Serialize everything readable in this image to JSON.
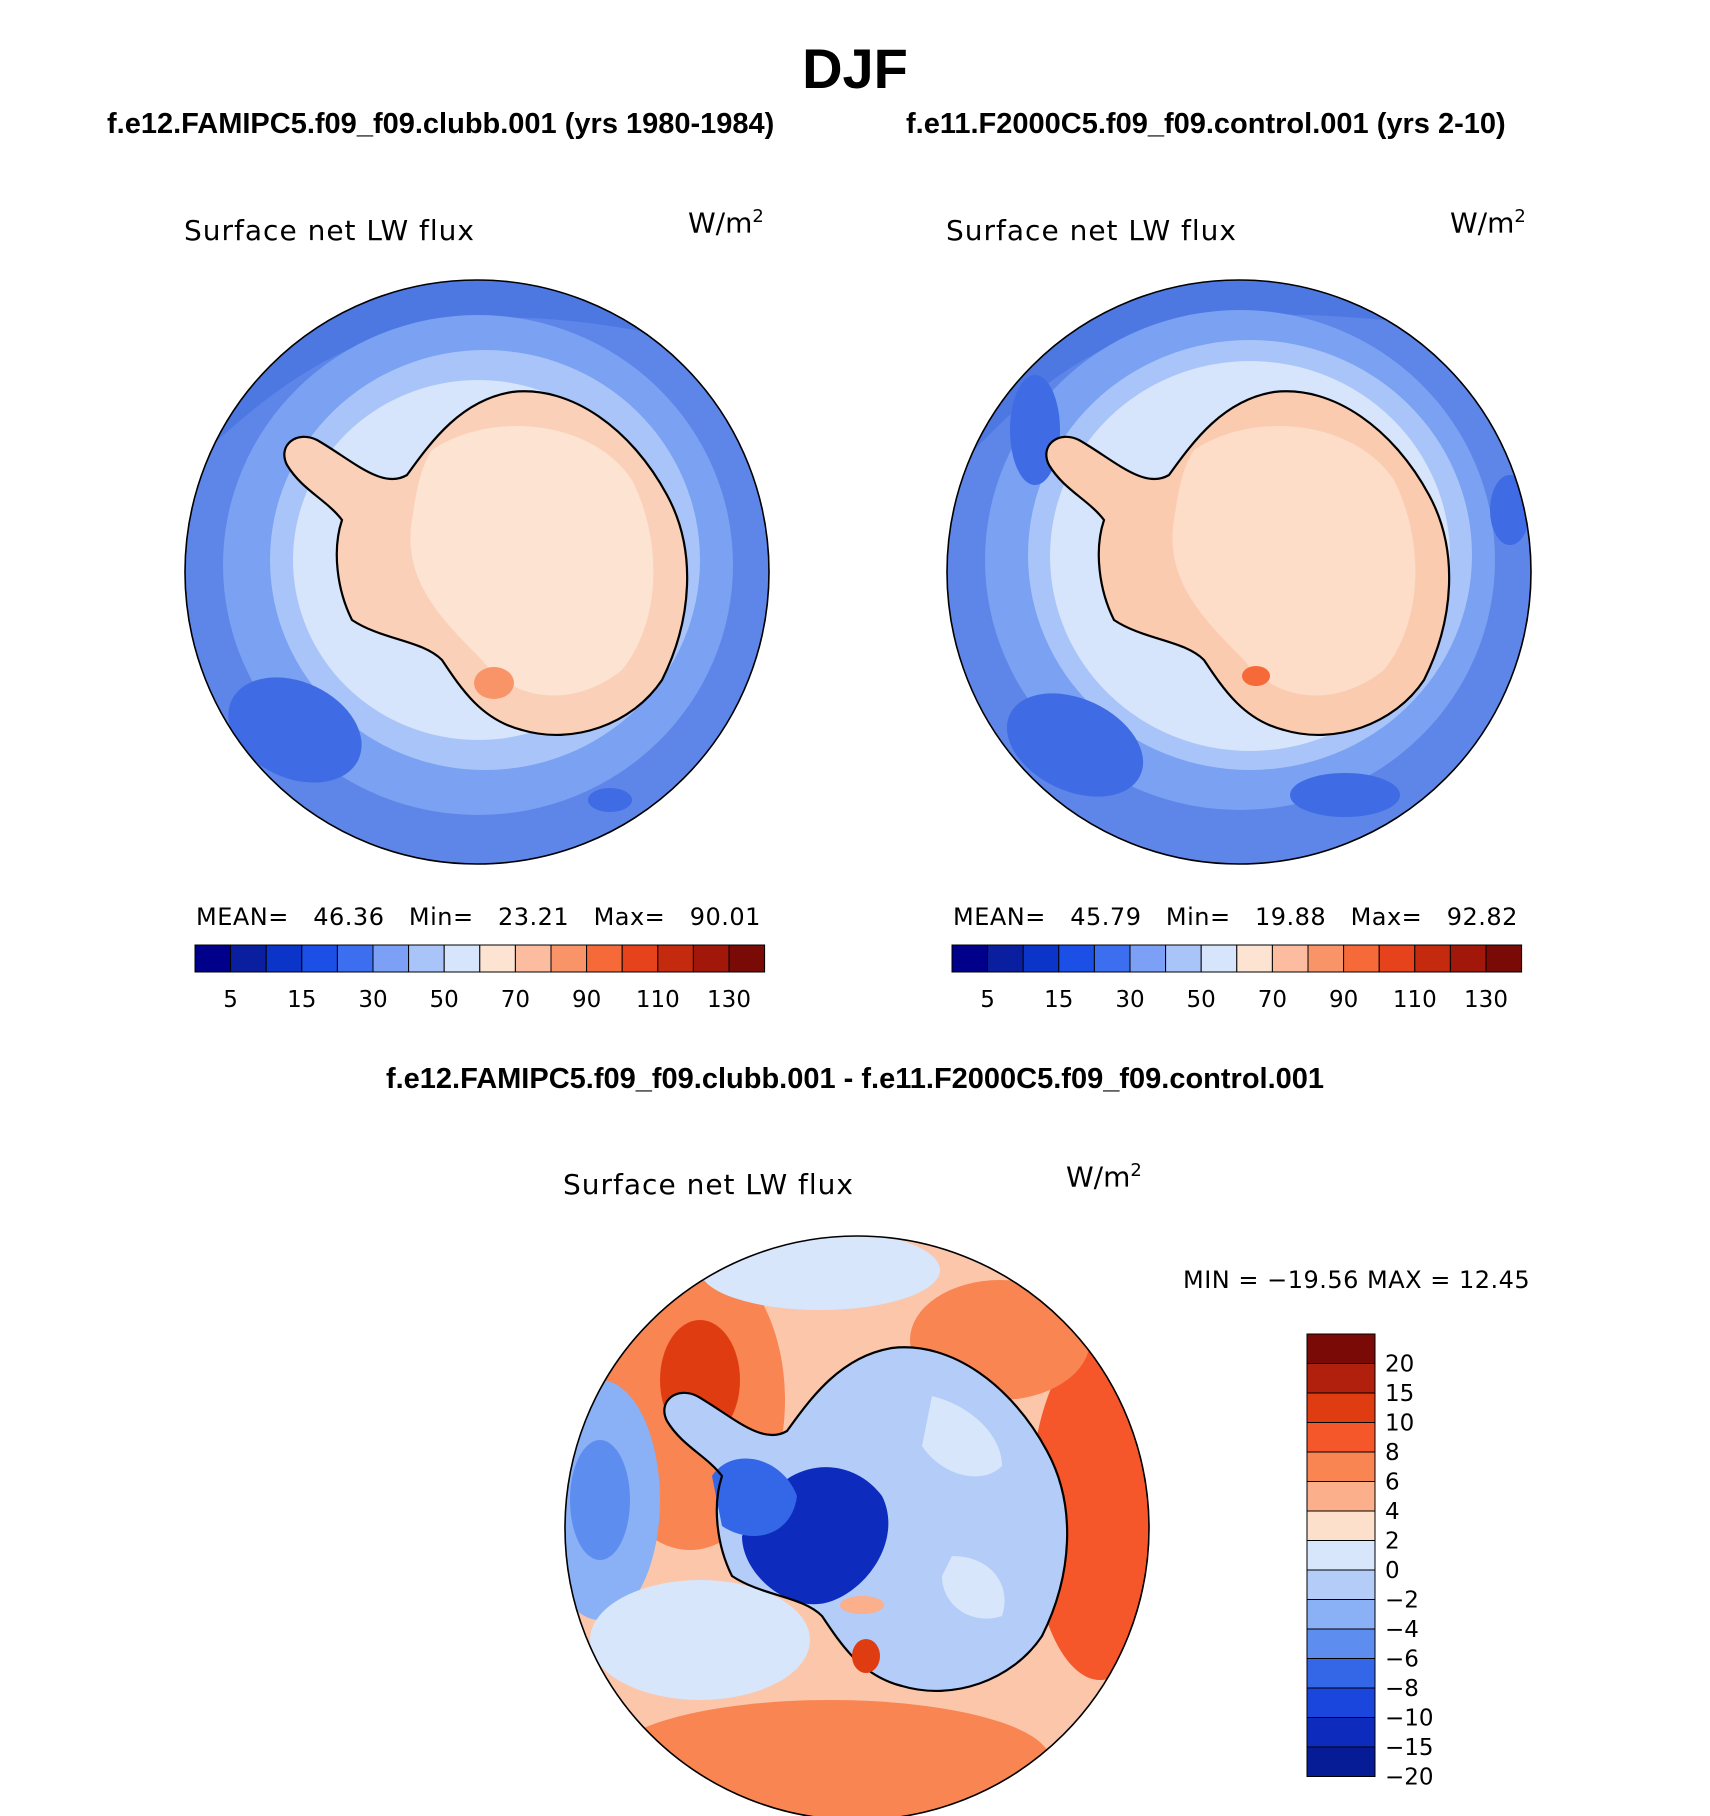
{
  "title": "DJF",
  "panels": [
    {
      "case_title": "f.e12.FAMIPC5.f09_f09.clubb.001 (yrs 1980-1984)",
      "variable": "Surface net LW flux",
      "units_base": "W/m",
      "units_exp": "2",
      "stats": {
        "mean_label": "MEAN=",
        "mean": "46.36",
        "min_label": "Min=",
        "min": "23.21",
        "max_label": "Max=",
        "max": "90.01"
      }
    },
    {
      "case_title": "f.e11.F2000C5.f09_f09.control.001 (yrs 2-10)",
      "variable": "Surface net LW flux",
      "units_base": "W/m",
      "units_exp": "2",
      "stats": {
        "mean_label": "MEAN=",
        "mean": "45.79",
        "min_label": "Min=",
        "min": "19.88",
        "max_label": "Max=",
        "max": "92.82"
      }
    }
  ],
  "colorbar": {
    "colors": [
      "#00008b",
      "#0a1fa0",
      "#0a35c8",
      "#1c4fe6",
      "#3c6ef0",
      "#7ba0f5",
      "#a9c4f8",
      "#d6e5fb",
      "#fde3d2",
      "#fbbca0",
      "#f89468",
      "#f66a3a",
      "#e6421c",
      "#c42a0e",
      "#a1180a",
      "#7a0a06"
    ],
    "ticks": [
      "5",
      "15",
      "30",
      "50",
      "70",
      "90",
      "110",
      "130"
    ]
  },
  "difference": {
    "title": "f.e12.FAMIPC5.f09_f09.clubb.001 - f.e11.F2000C5.f09_f09.control.001",
    "variable": "Surface net LW flux",
    "units_base": "W/m",
    "units_exp": "2",
    "minmax": "MIN = −19.56 MAX =   12.45",
    "colorbar_colors_top_to_bottom": [
      "#7a0a06",
      "#b1200c",
      "#e03c12",
      "#f6572a",
      "#f88552",
      "#fbaf8a",
      "#fde0cc",
      "#d7e6fb",
      "#b3ccf8",
      "#8ab0f5",
      "#5d8def",
      "#3466e8",
      "#1a46dd",
      "#0d2cbe",
      "#061b96"
    ],
    "ticks_top_to_bottom": [
      "20",
      "15",
      "10",
      "8",
      "6",
      "4",
      "2",
      "0",
      "−2",
      "−4",
      "−6",
      "−8",
      "−10",
      "−15",
      "−20"
    ]
  }
}
